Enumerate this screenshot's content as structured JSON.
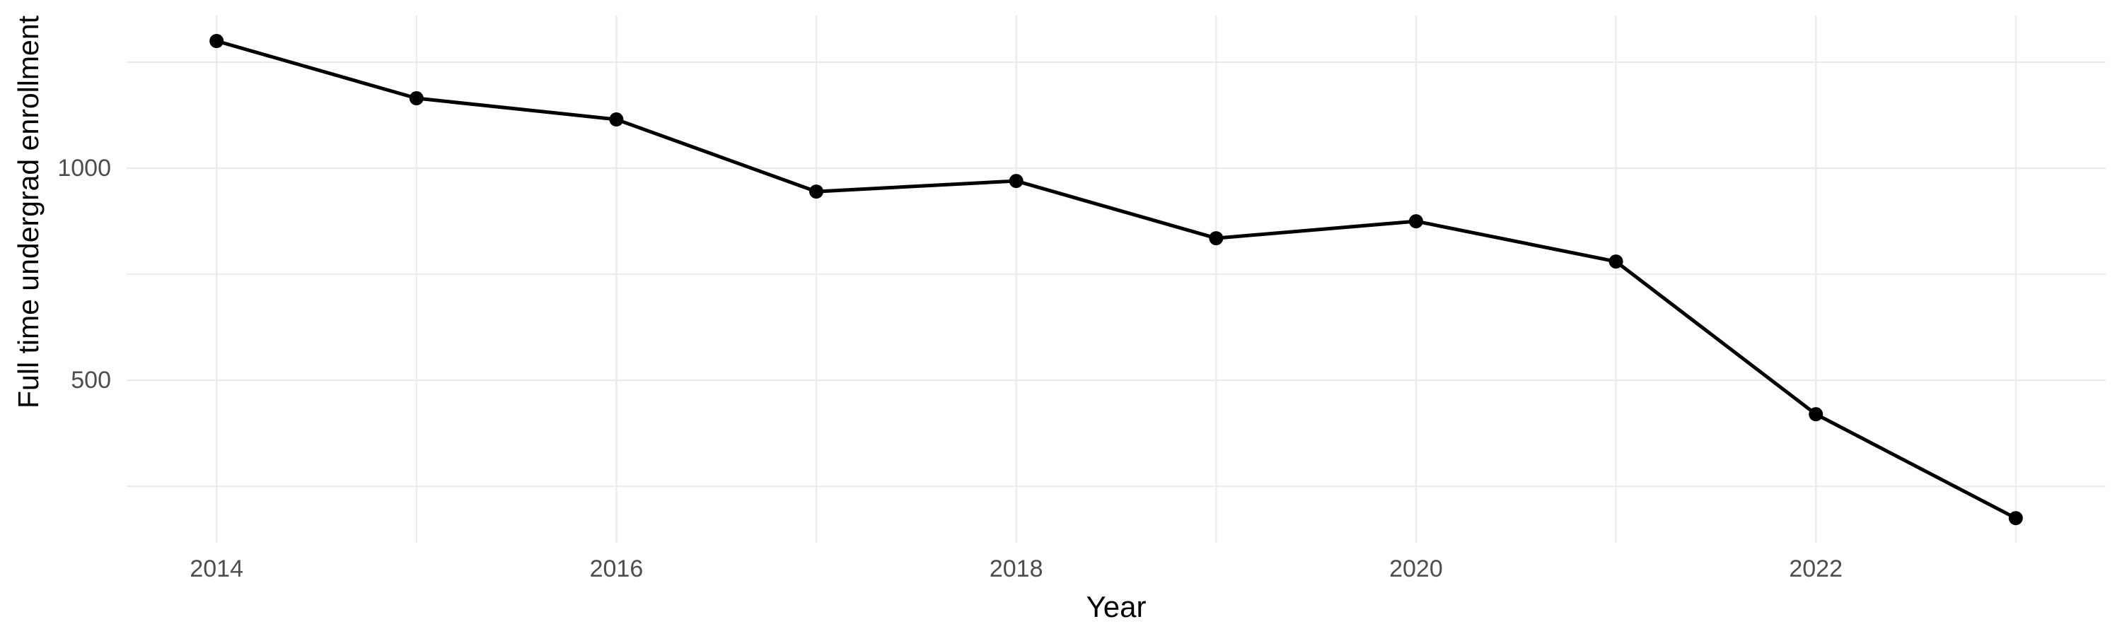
{
  "chart_data": {
    "type": "line",
    "title": "",
    "xlabel": "Year",
    "ylabel": "Full time undergrad enrollment",
    "x": [
      2014,
      2015,
      2016,
      2017,
      2018,
      2019,
      2020,
      2021,
      2022,
      2023
    ],
    "values": [
      1300,
      1165,
      1115,
      945,
      970,
      835,
      875,
      780,
      420,
      175
    ],
    "x_range": [
      2013.55,
      2023.45
    ],
    "y_range": [
      117,
      1360
    ],
    "x_ticks_major": [
      2014,
      2016,
      2018,
      2020,
      2022
    ],
    "x_ticks_minor": [
      2015,
      2017,
      2019,
      2021,
      2023
    ],
    "y_ticks_major": [
      500,
      1000
    ],
    "y_ticks_minor": [
      250,
      750,
      1250
    ],
    "x_tick_labels": [
      "2014",
      "2016",
      "2018",
      "2020",
      "2022"
    ],
    "y_tick_labels": [
      "500",
      "1000"
    ],
    "grid": true,
    "legend_position": "none",
    "marker": "point",
    "colors": {
      "line": "#000000",
      "point": "#000000",
      "grid": "#EBEBEB",
      "tick_label": "#4D4D4D",
      "axis_title": "#000000",
      "background": "#FFFFFF"
    }
  }
}
